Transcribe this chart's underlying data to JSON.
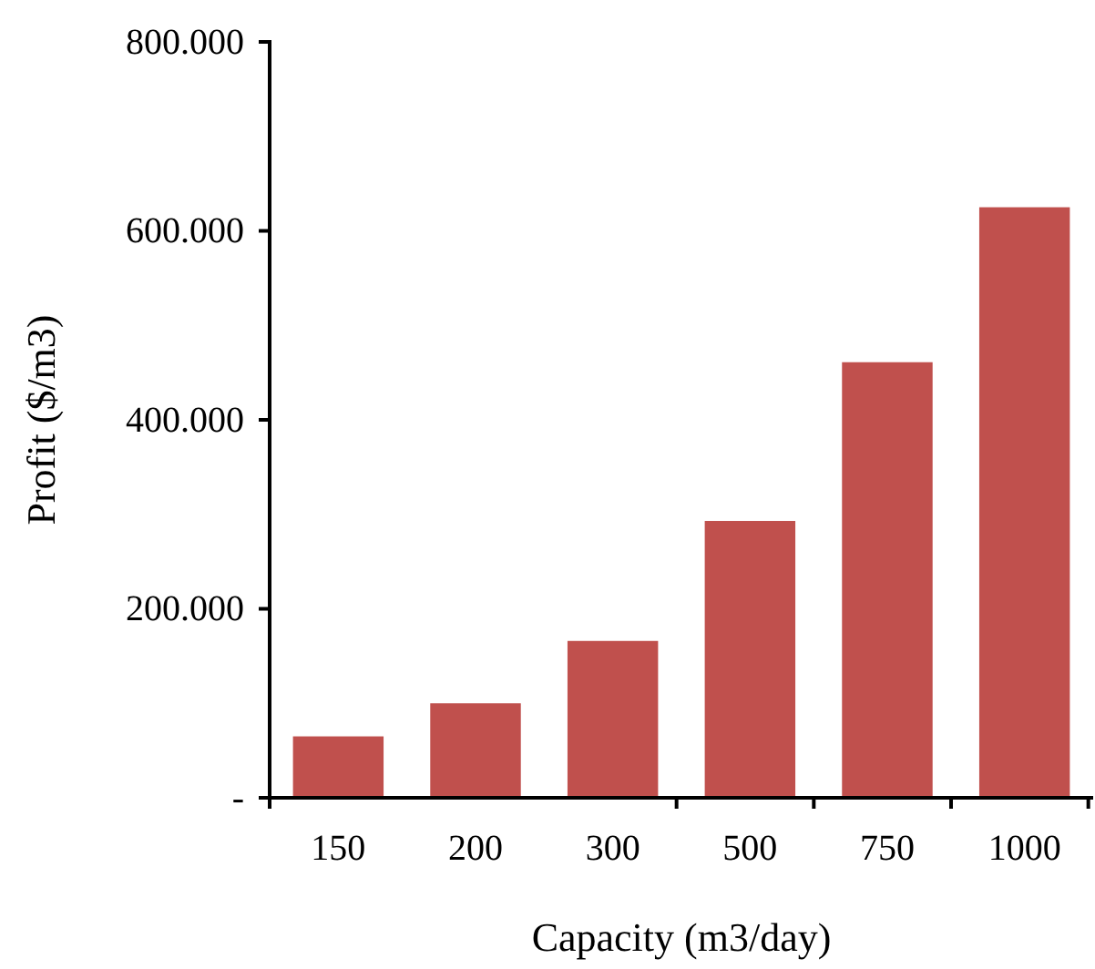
{
  "chart_data": {
    "type": "bar",
    "xlabel": "Capacity (m3/day)",
    "ylabel": "Profit ($/m3)",
    "categories": [
      "150",
      "200",
      "300",
      "500",
      "750",
      "1000"
    ],
    "values": [
      65000,
      100000,
      166000,
      293000,
      461000,
      625000
    ],
    "color": "#c0504d",
    "ylim": [
      0,
      800000
    ],
    "yticks": [
      {
        "value": 0,
        "label": "-"
      },
      {
        "value": 200000,
        "label": "200.000"
      },
      {
        "value": 400000,
        "label": "400.000"
      },
      {
        "value": 600000,
        "label": "600.000"
      },
      {
        "value": 800000,
        "label": "800.000"
      }
    ],
    "grid": false
  }
}
